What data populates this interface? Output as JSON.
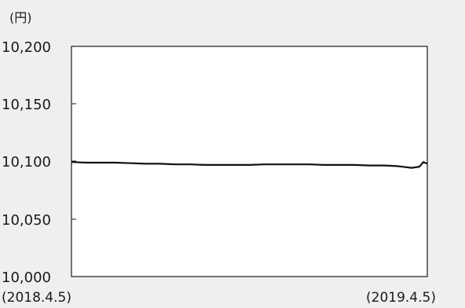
{
  "chart_data": {
    "type": "line",
    "unit_label": "(円)",
    "y_ticks": [
      "10,200",
      "10,150",
      "10,100",
      "10,050",
      "10,000"
    ],
    "ylim": [
      10000,
      10200
    ],
    "xlim": [
      "2018-04-05",
      "2019-04-05"
    ],
    "x_labels": {
      "start": "(2018.4.5)",
      "end": "(2019.4.5)"
    },
    "grid": false,
    "series": [
      {
        "x": [
          "2018-04-05",
          "2018-04-20",
          "2018-05-05",
          "2018-05-20",
          "2018-06-05",
          "2018-06-20",
          "2018-07-05",
          "2018-07-20",
          "2018-08-05",
          "2018-08-20",
          "2018-09-05",
          "2018-09-20",
          "2018-10-05",
          "2018-10-20",
          "2018-11-05",
          "2018-11-20",
          "2018-12-05",
          "2018-12-20",
          "2019-01-05",
          "2019-01-20",
          "2019-02-05",
          "2019-02-20",
          "2019-03-05",
          "2019-03-20",
          "2019-03-28",
          "2019-04-01",
          "2019-04-05"
        ],
        "values": [
          10099.5,
          10099,
          10099,
          10099,
          10098.5,
          10098,
          10098,
          10097.5,
          10097.5,
          10097,
          10097,
          10097,
          10097,
          10097.5,
          10097.5,
          10097.5,
          10097.5,
          10097,
          10097,
          10097,
          10096.5,
          10096.5,
          10096,
          10094.5,
          10095.5,
          10099.5,
          10098
        ]
      }
    ]
  }
}
